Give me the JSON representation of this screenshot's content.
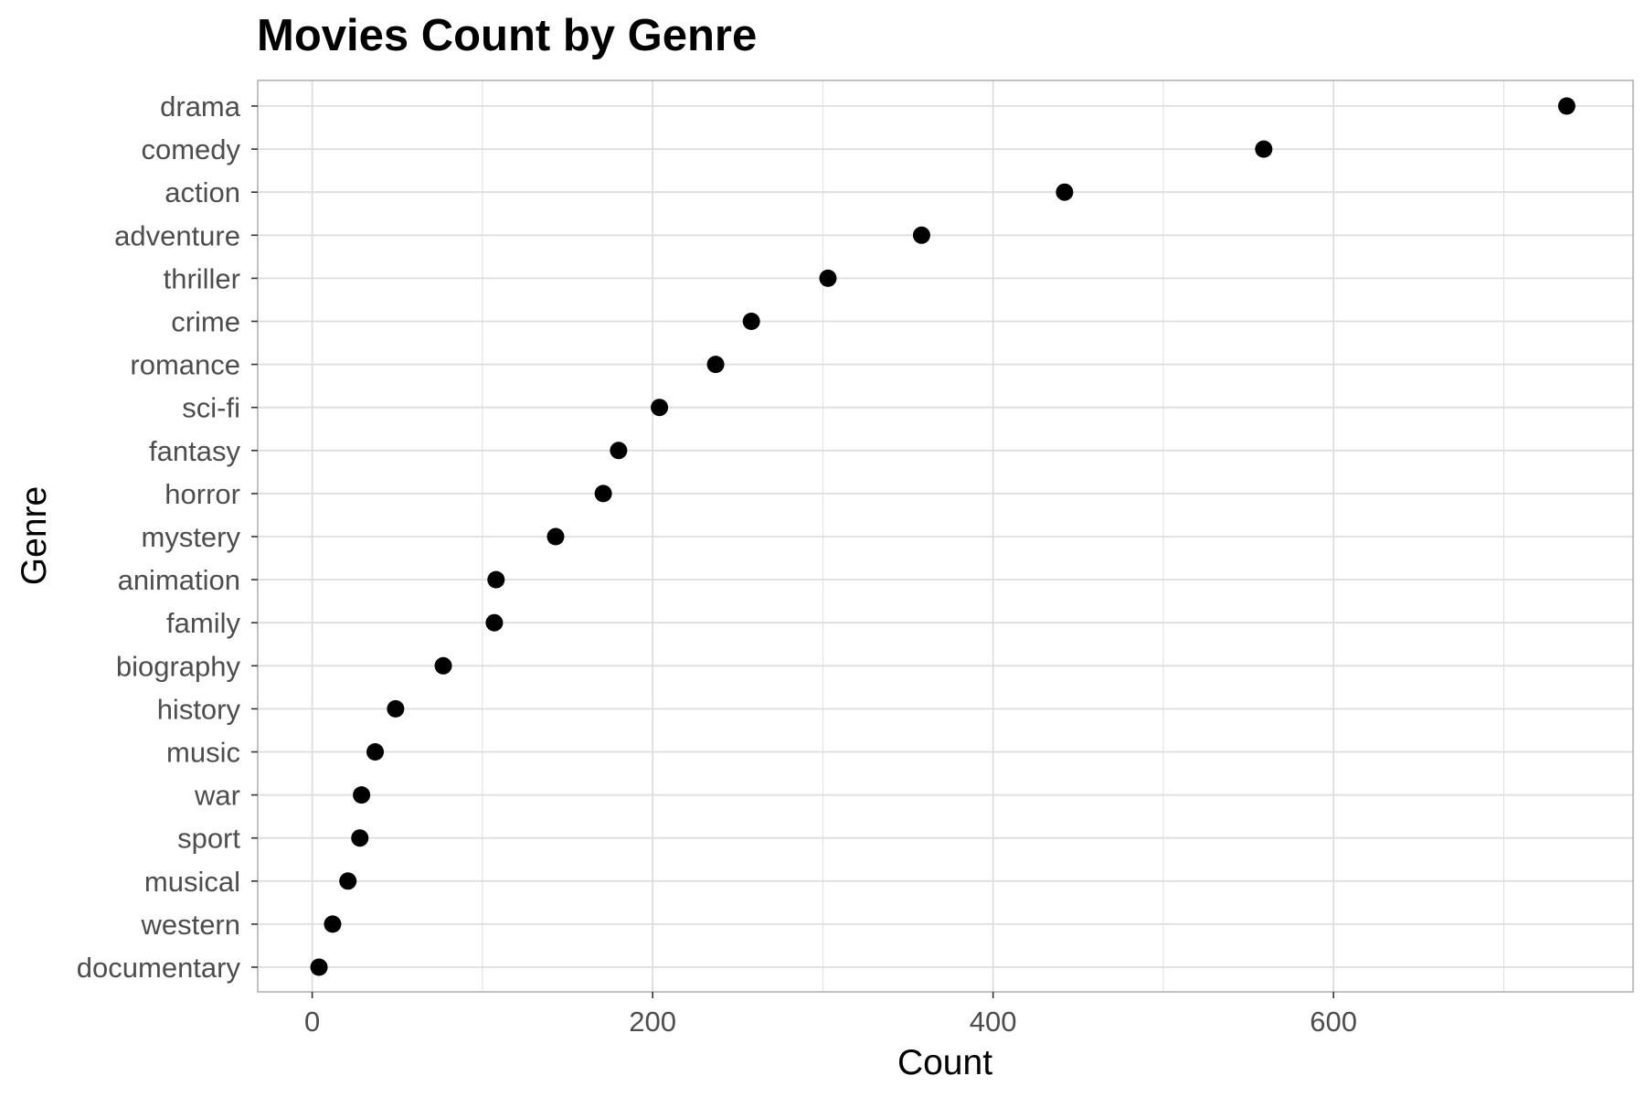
{
  "chart_data": {
    "type": "scatter",
    "title": "Movies Count by Genre",
    "xlabel": "Count",
    "ylabel": "Genre",
    "xlim": [
      -32,
      776
    ],
    "x_ticks": [
      0,
      200,
      400,
      600
    ],
    "x_minor_ticks": [
      100,
      300,
      500,
      700
    ],
    "grid": true,
    "categories": [
      "drama",
      "comedy",
      "action",
      "adventure",
      "thriller",
      "crime",
      "romance",
      "sci-fi",
      "fantasy",
      "horror",
      "mystery",
      "animation",
      "family",
      "biography",
      "history",
      "music",
      "war",
      "sport",
      "musical",
      "western",
      "documentary"
    ],
    "values": [
      737,
      559,
      442,
      358,
      303,
      258,
      237,
      204,
      180,
      171,
      143,
      108,
      107,
      77,
      49,
      37,
      29,
      28,
      21,
      12,
      4
    ],
    "colors": {
      "point": "#000000",
      "grid": "#dedede",
      "panel_border": "#b3b3b3",
      "tick_text": "#4d4d4d"
    }
  }
}
